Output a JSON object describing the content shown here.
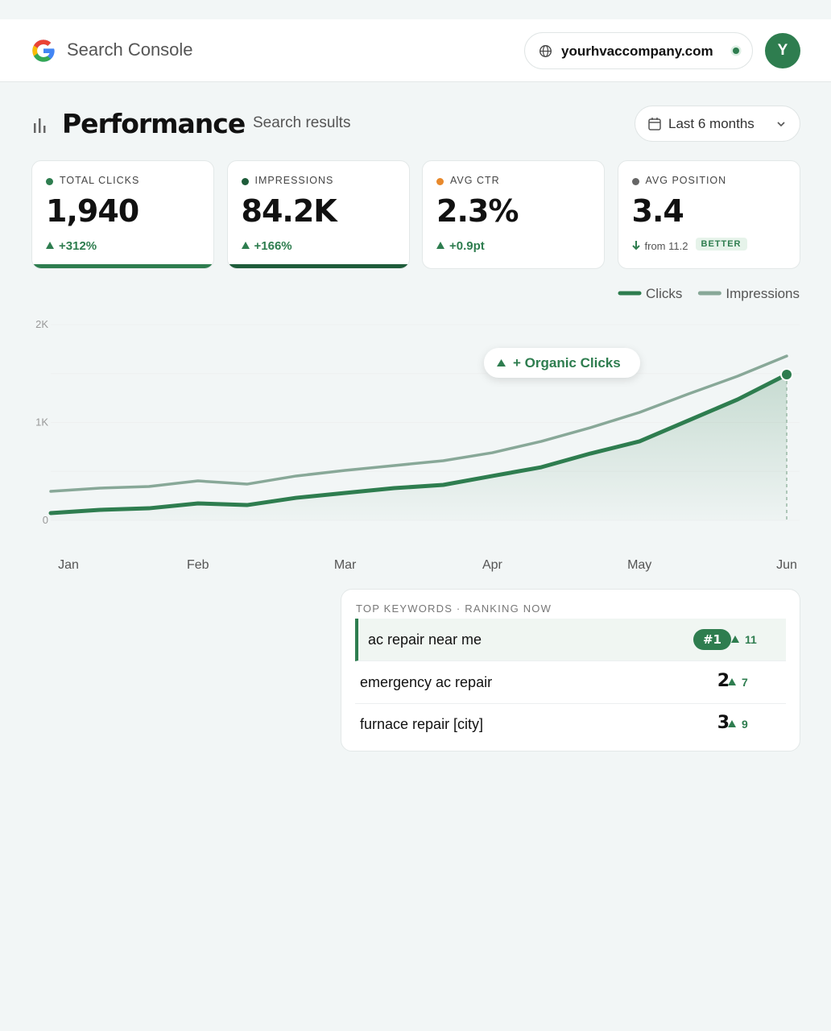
{
  "header": {
    "product": "Search Console",
    "site": "yourhvaccompany.com",
    "avatar": "Y"
  },
  "page": {
    "title": "Performance",
    "subtitle": "Search results",
    "range": "Last 6 months"
  },
  "metrics": [
    {
      "label": "TOTAL CLICKS",
      "value": "1,940",
      "change": "+312%",
      "direction": "up",
      "color": "#2e7d4f",
      "highlighted": true
    },
    {
      "label": "IMPRESSIONS",
      "value": "84.2K",
      "change": "+166%",
      "direction": "up",
      "color": "#1e5c3a",
      "highlighted": true
    },
    {
      "label": "AVG CTR",
      "value": "2.3%",
      "change": "+0.9pt",
      "direction": "up",
      "color": "#e8892c",
      "highlighted": false
    },
    {
      "label": "AVG POSITION",
      "value": "3.4",
      "change": "from 11.2",
      "direction": "down",
      "badge": "BETTER",
      "color": "#666666",
      "highlighted": false
    }
  ],
  "chart_data": {
    "type": "line",
    "categories": [
      "Jan",
      null,
      null,
      "Feb",
      null,
      null,
      "Mar",
      null,
      null,
      "Apr",
      null,
      null,
      "May",
      null,
      null,
      "Jun"
    ],
    "series": [
      {
        "name": "Clicks",
        "color": "#2e7d4f",
        "values": [
          74,
          107,
          123,
          173,
          156,
          230,
          280,
          329,
          362,
          453,
          543,
          683,
          807,
          1021,
          1235,
          1490
        ]
      },
      {
        "name": "Impressions",
        "color": "#88a898",
        "values": [
          296,
          329,
          346,
          403,
          370,
          453,
          510,
          560,
          609,
          691,
          807,
          947,
          1103,
          1292,
          1473,
          1679
        ]
      }
    ],
    "ylim": [
      0,
      2000
    ],
    "yticks": [
      0,
      {
        "value": 1000,
        "label": "1K"
      },
      {
        "value": 2000,
        "label": "2K"
      }
    ],
    "ygrid": [
      0,
      500,
      1000,
      1500,
      2000
    ],
    "annotation": "+ Organic Clicks",
    "legend": "top-right"
  },
  "keywords": {
    "title": "TOP KEYWORDS · RANKING NOW",
    "rows": [
      {
        "keyword": "ac repair near me",
        "rank": "#1",
        "change": 11
      },
      {
        "keyword": "emergency ac repair",
        "rank": 2,
        "change": 7
      },
      {
        "keyword": "furnace repair [city]",
        "rank": 3,
        "change": 9
      }
    ]
  }
}
